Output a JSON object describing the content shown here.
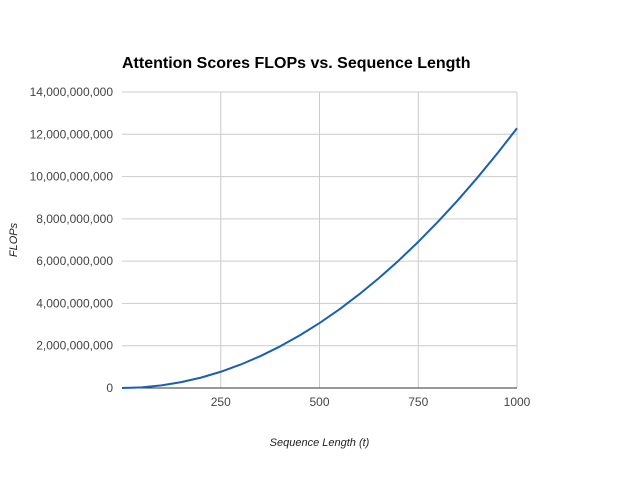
{
  "chart_data": {
    "type": "line",
    "title": "Attention Scores FLOPs vs. Sequence Length",
    "xlabel": "Sequence Length (t)",
    "ylabel": "FLOPs",
    "xlim": [
      0,
      1000
    ],
    "ylim": [
      0,
      14000000000
    ],
    "x_ticks": [
      250,
      500,
      750,
      1000
    ],
    "y_ticks": [
      0,
      2000000000,
      4000000000,
      6000000000,
      8000000000,
      10000000000,
      12000000000,
      14000000000
    ],
    "x_tick_labels": [
      "250",
      "500",
      "750",
      "1000"
    ],
    "y_tick_labels": [
      "0",
      "2,000,000,000",
      "4,000,000,000",
      "6,000,000,000",
      "8,000,000,000",
      "10,000,000,000",
      "12,000,000,000",
      "14,000,000,000"
    ],
    "grid": true,
    "series": [
      {
        "color": "#1a5fb4",
        "x": [
          0,
          50,
          100,
          150,
          200,
          250,
          300,
          350,
          400,
          450,
          500,
          550,
          600,
          650,
          700,
          750,
          800,
          850,
          900,
          950,
          1000
        ],
        "y": [
          0,
          30720000,
          122880000,
          276480000,
          491520000,
          768000000,
          1105920000,
          1505280000,
          1966080000,
          2488320000,
          3072000000,
          3717120000,
          4423680000,
          5191680000,
          6021120000,
          6912000000,
          7864320000,
          8878080000,
          9953280000,
          11089920000,
          12288000000
        ]
      }
    ]
  }
}
